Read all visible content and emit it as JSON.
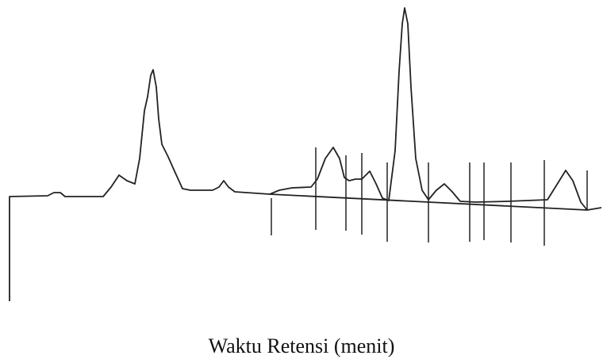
{
  "caption": "Waktu Retensi (menit)"
}
